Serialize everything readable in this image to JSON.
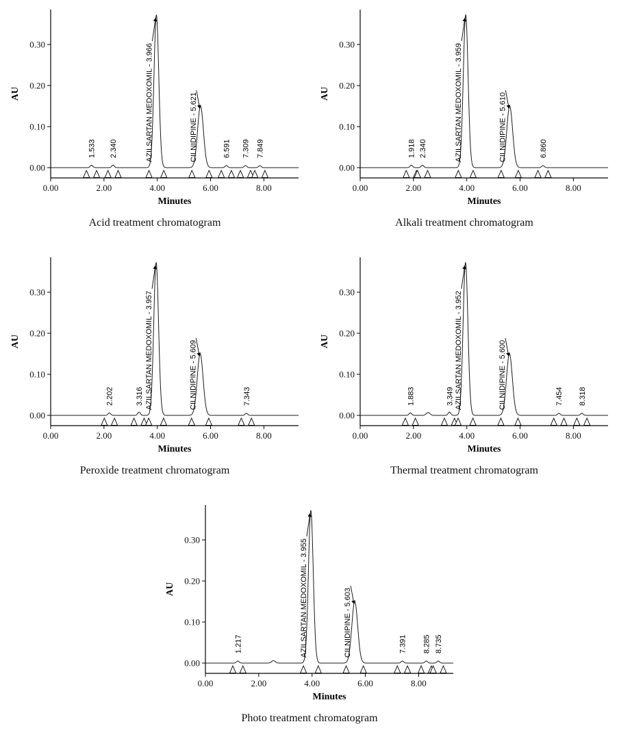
{
  "figure": {
    "line_color": "#1a1a1a",
    "axis_color": "#000000",
    "background": "#ffffff"
  },
  "chart_data": [
    {
      "type": "line",
      "title": "Acid treatment chromatogram",
      "xlabel": "Minutes",
      "ylabel": "AU",
      "xlim": [
        0,
        9.3
      ],
      "ylim": [
        -0.025,
        0.385
      ],
      "xticks": [
        0,
        2,
        4,
        6,
        8
      ],
      "yticks": [
        0,
        0.1,
        0.2,
        0.3
      ],
      "grid": false,
      "peaks": [
        {
          "rt": 1.533,
          "h": 0.006,
          "sigma": 0.05,
          "label": "1.533",
          "kind": "minor"
        },
        {
          "rt": 2.34,
          "h": 0.006,
          "sigma": 0.05,
          "label": "2.340",
          "kind": "minor"
        },
        {
          "rt": 3.966,
          "h": 0.372,
          "sigma": 0.09,
          "label": "AZILSARTAN MEDOXOMIL - 3.966",
          "kind": "major"
        },
        {
          "rt": 5.621,
          "h": 0.15,
          "sigma": 0.11,
          "label": "CILNIDIPINE - 5.621",
          "kind": "major"
        },
        {
          "rt": 6.591,
          "h": 0.005,
          "sigma": 0.05,
          "label": "6.591",
          "kind": "minor"
        },
        {
          "rt": 7.309,
          "h": 0.005,
          "sigma": 0.05,
          "label": "7.309",
          "kind": "minor"
        },
        {
          "rt": 7.849,
          "h": 0.005,
          "sigma": 0.05,
          "label": "7.849",
          "kind": "minor"
        }
      ]
    },
    {
      "type": "line",
      "title": "Alkali treatment chromatogram",
      "xlabel": "Minutes",
      "ylabel": "AU",
      "xlim": [
        0,
        9.3
      ],
      "ylim": [
        -0.025,
        0.385
      ],
      "xticks": [
        0,
        2,
        4,
        6,
        8
      ],
      "yticks": [
        0,
        0.1,
        0.2,
        0.3
      ],
      "grid": false,
      "peaks": [
        {
          "rt": 1.918,
          "h": 0.006,
          "sigma": 0.05,
          "label": "1.918",
          "kind": "minor"
        },
        {
          "rt": 2.34,
          "h": 0.006,
          "sigma": 0.05,
          "label": "2.340",
          "kind": "minor"
        },
        {
          "rt": 3.959,
          "h": 0.372,
          "sigma": 0.09,
          "label": "AZILSARTAN MEDOXOMIL - 3.959",
          "kind": "major"
        },
        {
          "rt": 5.61,
          "h": 0.15,
          "sigma": 0.11,
          "label": "CILNIDIPINE - 5.610",
          "kind": "major"
        },
        {
          "rt": 6.86,
          "h": 0.005,
          "sigma": 0.05,
          "label": "6.860",
          "kind": "minor"
        }
      ]
    },
    {
      "type": "line",
      "title": "Peroxide treatment chromatogram",
      "xlabel": "Minutes",
      "ylabel": "AU",
      "xlim": [
        0,
        9.3
      ],
      "ylim": [
        -0.025,
        0.385
      ],
      "xticks": [
        0,
        2,
        4,
        6,
        8
      ],
      "yticks": [
        0,
        0.1,
        0.2,
        0.3
      ],
      "grid": false,
      "peaks": [
        {
          "rt": 2.202,
          "h": 0.006,
          "sigma": 0.05,
          "label": "2.202",
          "kind": "minor"
        },
        {
          "rt": 3.316,
          "h": 0.008,
          "sigma": 0.05,
          "label": "3.316",
          "kind": "minor"
        },
        {
          "rt": 3.957,
          "h": 0.372,
          "sigma": 0.09,
          "label": "AZILSARTAN MEDOXOMIL - 3.957",
          "kind": "major"
        },
        {
          "rt": 5.609,
          "h": 0.15,
          "sigma": 0.11,
          "label": "CILNIDIPINE - 5.609",
          "kind": "major"
        },
        {
          "rt": 7.343,
          "h": 0.005,
          "sigma": 0.05,
          "label": "7.343",
          "kind": "minor"
        }
      ]
    },
    {
      "type": "line",
      "title": "Thermal treatment chromatogram",
      "xlabel": "Minutes",
      "ylabel": "AU",
      "xlim": [
        0,
        9.3
      ],
      "ylim": [
        -0.025,
        0.385
      ],
      "xticks": [
        0,
        2,
        4,
        6,
        8
      ],
      "yticks": [
        0,
        0.1,
        0.2,
        0.3
      ],
      "grid": false,
      "peaks": [
        {
          "rt": 1.883,
          "h": 0.006,
          "sigma": 0.05,
          "label": "1.883",
          "kind": "minor"
        },
        {
          "rt": 2.55,
          "h": 0.007,
          "sigma": 0.07,
          "label": "",
          "kind": "bump"
        },
        {
          "rt": 3.349,
          "h": 0.008,
          "sigma": 0.05,
          "label": "3.349",
          "kind": "minor"
        },
        {
          "rt": 3.952,
          "h": 0.372,
          "sigma": 0.09,
          "label": "AZILSARTAN MEDOXOMIL - 3.952",
          "kind": "major"
        },
        {
          "rt": 5.6,
          "h": 0.15,
          "sigma": 0.11,
          "label": "CILNIDIPINE - 5.600",
          "kind": "major"
        },
        {
          "rt": 7.454,
          "h": 0.005,
          "sigma": 0.05,
          "label": "7.454",
          "kind": "minor"
        },
        {
          "rt": 8.318,
          "h": 0.005,
          "sigma": 0.05,
          "label": "8.318",
          "kind": "minor"
        }
      ]
    },
    {
      "type": "line",
      "title": "Photo treatment chromatogram",
      "xlabel": "Minutes",
      "ylabel": "AU",
      "xlim": [
        0,
        9.3
      ],
      "ylim": [
        -0.025,
        0.385
      ],
      "xticks": [
        0,
        2,
        4,
        6,
        8
      ],
      "yticks": [
        0,
        0.1,
        0.2,
        0.3
      ],
      "grid": false,
      "peaks": [
        {
          "rt": 1.217,
          "h": 0.005,
          "sigma": 0.05,
          "label": "1.217",
          "kind": "minor"
        },
        {
          "rt": 2.55,
          "h": 0.006,
          "sigma": 0.07,
          "label": "",
          "kind": "bump"
        },
        {
          "rt": 3.955,
          "h": 0.372,
          "sigma": 0.09,
          "label": "AZILSARTAN MEDOXOMIL - 3.955",
          "kind": "major"
        },
        {
          "rt": 5.603,
          "h": 0.15,
          "sigma": 0.11,
          "label": "CILNIDIPINE - 5.603",
          "kind": "major"
        },
        {
          "rt": 7.391,
          "h": 0.005,
          "sigma": 0.05,
          "label": "7.391",
          "kind": "minor"
        },
        {
          "rt": 8.285,
          "h": 0.005,
          "sigma": 0.05,
          "label": "8.285",
          "kind": "minor"
        },
        {
          "rt": 8.735,
          "h": 0.005,
          "sigma": 0.05,
          "label": "8.735",
          "kind": "minor"
        }
      ]
    }
  ]
}
